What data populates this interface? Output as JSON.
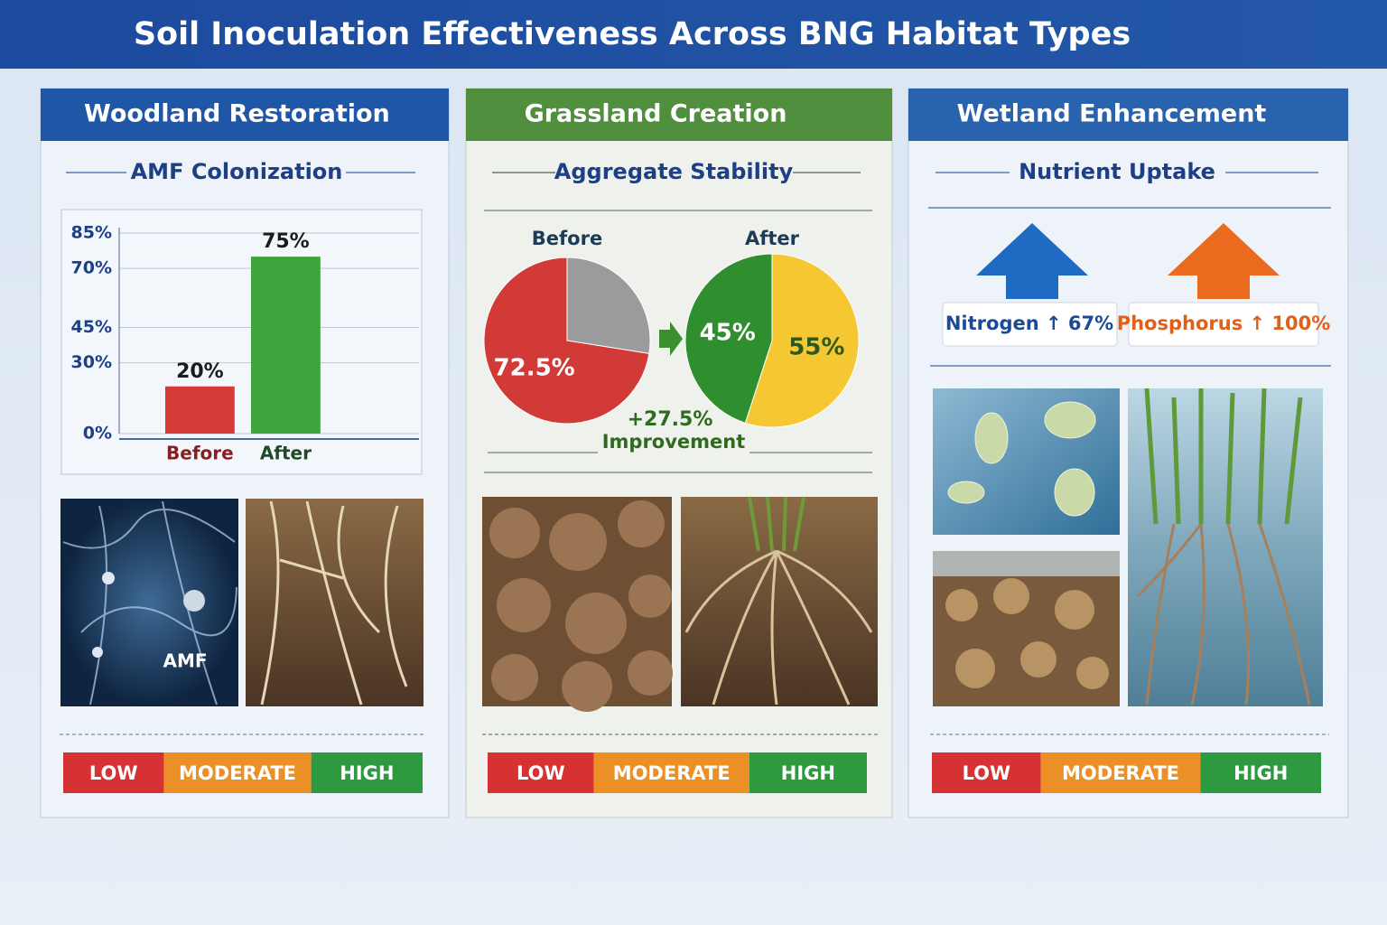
{
  "title": "Soil Inoculation Effectiveness Across BNG Habitat Types",
  "panels": [
    {
      "title": "Woodland Restoration",
      "subtitle": "AMF Colonization",
      "image_label": "AMF",
      "scale": [
        "LOW",
        "MODERATE",
        "HIGH"
      ]
    },
    {
      "title": "Grassland Creation",
      "subtitle": "Aggregate Stability",
      "annotation": [
        "+27.5%",
        "Improvement"
      ],
      "scale": [
        "LOW",
        "MODERATE",
        "HIGH"
      ]
    },
    {
      "title": "Wetland Enhancement",
      "subtitle": "Nutrient Uptake",
      "nutrients": [
        "Nitrogen ↑ 67%",
        "Phosphorus ↑ 100%"
      ],
      "scale": [
        "LOW",
        "MODERATE",
        "HIGH"
      ]
    }
  ],
  "chart_data": [
    {
      "type": "bar",
      "categories": [
        "Before",
        "After"
      ],
      "values": [
        20,
        75
      ],
      "value_labels": [
        "20%",
        "75%"
      ],
      "colors": [
        "#d43a36",
        "#3da33d"
      ],
      "ylim": [
        0,
        85
      ],
      "yticks": [
        {
          "value": 0,
          "label": "0%"
        },
        {
          "value": 30,
          "label": "30%"
        },
        {
          "value": 45,
          "label": "45%"
        },
        {
          "value": 70,
          "label": "70%"
        },
        {
          "value": 85,
          "label": "85%"
        }
      ],
      "grid": true
    },
    {
      "type": "pie",
      "title": "Before",
      "values": [
        72.5,
        27.5
      ],
      "value_labels": [
        "72.5%",
        null
      ],
      "colors": [
        "#d23a38",
        "#9b9b9d"
      ]
    },
    {
      "type": "pie",
      "title": "After",
      "values": [
        45,
        55
      ],
      "value_labels": [
        "45%",
        "55%"
      ],
      "colors": [
        "#2f8f2f",
        "#f5c733"
      ]
    }
  ]
}
